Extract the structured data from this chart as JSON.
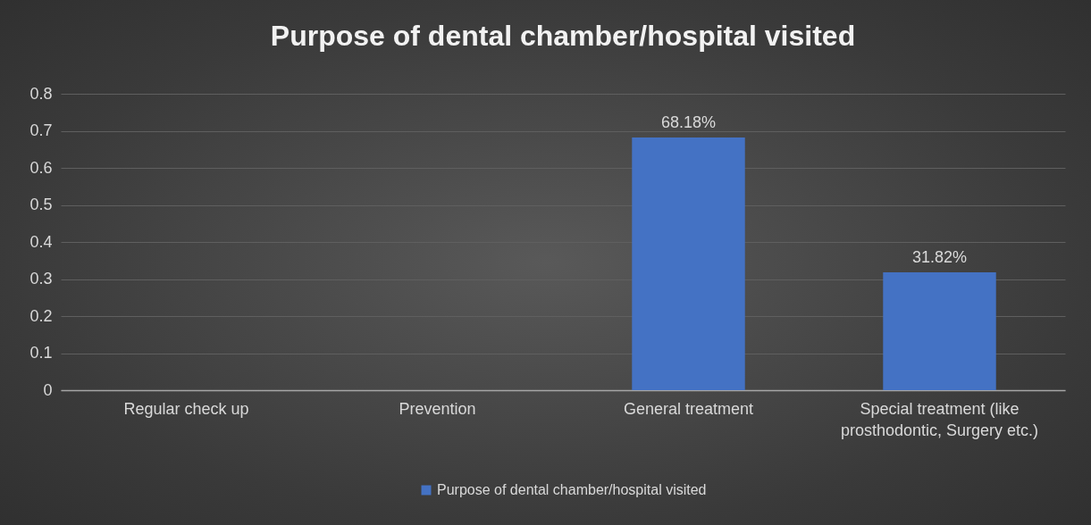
{
  "chart_data": {
    "type": "bar",
    "title": "Purpose of dental chamber/hospital visited",
    "categories": [
      "Regular check up",
      "Prevention",
      "General treatment",
      "Special treatment (like prosthodontic, Surgery etc.)"
    ],
    "series": [
      {
        "name": "Purpose of dental chamber/hospital visited",
        "color": "#4472c4",
        "values": [
          0,
          0,
          0.6818,
          0.3182
        ],
        "value_labels": [
          null,
          null,
          "68.18%",
          "31.82%"
        ]
      }
    ],
    "ylim": [
      0,
      0.8
    ],
    "yticks": [
      0,
      0.1,
      0.2,
      0.3,
      0.4,
      0.5,
      0.6,
      0.7,
      0.8
    ],
    "grid": "y",
    "legend": "bottom"
  }
}
